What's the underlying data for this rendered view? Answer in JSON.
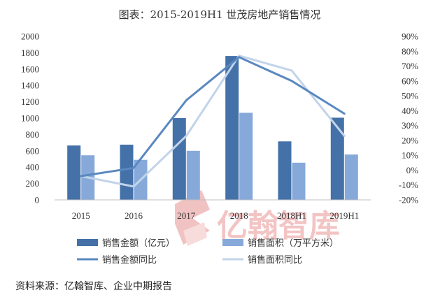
{
  "page": {
    "watermark_text": "亿翰智库",
    "source": "资料来源：亿翰智库、企业中期报告"
  },
  "chart_data": {
    "type": "bar",
    "title": "图表：2015-2019H1 世茂房地产销售情况",
    "categories": [
      "2015",
      "2016",
      "2017",
      "2018",
      "2018H1",
      "2019H1"
    ],
    "series": [
      {
        "name": "销售金额（亿元）",
        "kind": "bar",
        "axis": "left",
        "color": "#4471a8",
        "values": [
          665,
          675,
          1000,
          1760,
          715,
          1005
        ]
      },
      {
        "name": "销售面积（万平方米）",
        "kind": "bar",
        "axis": "left",
        "color": "#86a9da",
        "values": [
          545,
          490,
          600,
          1065,
          455,
          555
        ]
      },
      {
        "name": "销售金额同比",
        "kind": "line",
        "axis": "right",
        "color": "#5a88c0",
        "unit": "%",
        "values": [
          -4,
          1.5,
          47,
          76,
          60,
          38
        ]
      },
      {
        "name": "销售面积同比",
        "kind": "line",
        "axis": "right",
        "color": "#c2d4ea",
        "unit": "%",
        "values": [
          -4,
          -11,
          23,
          77,
          67,
          23
        ]
      }
    ],
    "y_left": {
      "min": 0,
      "max": 2000,
      "step": 200,
      "ticks": [
        "0",
        "200",
        "400",
        "600",
        "800",
        "1000",
        "1200",
        "1400",
        "1600",
        "1800",
        "2000"
      ]
    },
    "y_right": {
      "min": -20,
      "max": 90,
      "step": 10,
      "ticks": [
        "-20%",
        "-10%",
        "0%",
        "10%",
        "20%",
        "30%",
        "40%",
        "50%",
        "60%",
        "70%",
        "80%",
        "90%"
      ]
    },
    "grid": false,
    "legend_position": "bottom"
  }
}
